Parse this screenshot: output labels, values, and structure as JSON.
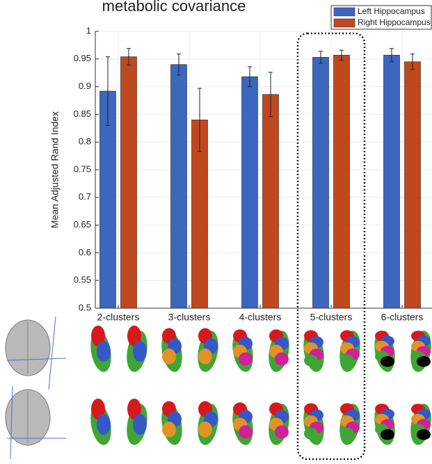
{
  "chart_data": {
    "type": "bar",
    "title": "metabolic covariance",
    "ylabel": "Mean Adjusted Rand Index",
    "categories": [
      "2-clusters",
      "3-clusters",
      "4-clusters",
      "5-clusters",
      "6-clusters"
    ],
    "series": [
      {
        "name": "Left Hippocampus",
        "color": "#3b67bf",
        "values": [
          0.892,
          0.94,
          0.918,
          0.953,
          0.957
        ],
        "errors": [
          0.062,
          0.019,
          0.018,
          0.011,
          0.012
        ]
      },
      {
        "name": "Right Hippocampus",
        "color": "#c0481f",
        "values": [
          0.954,
          0.84,
          0.886,
          0.957,
          0.945
        ],
        "errors": [
          0.015,
          0.057,
          0.04,
          0.009,
          0.014
        ]
      }
    ],
    "ylim": [
      0.5,
      1
    ],
    "yticks": [
      0.5,
      0.55,
      0.6,
      0.65,
      0.7,
      0.75,
      0.8,
      0.85,
      0.9,
      0.95,
      1
    ],
    "grid": true,
    "legend": "top-right"
  }
}
